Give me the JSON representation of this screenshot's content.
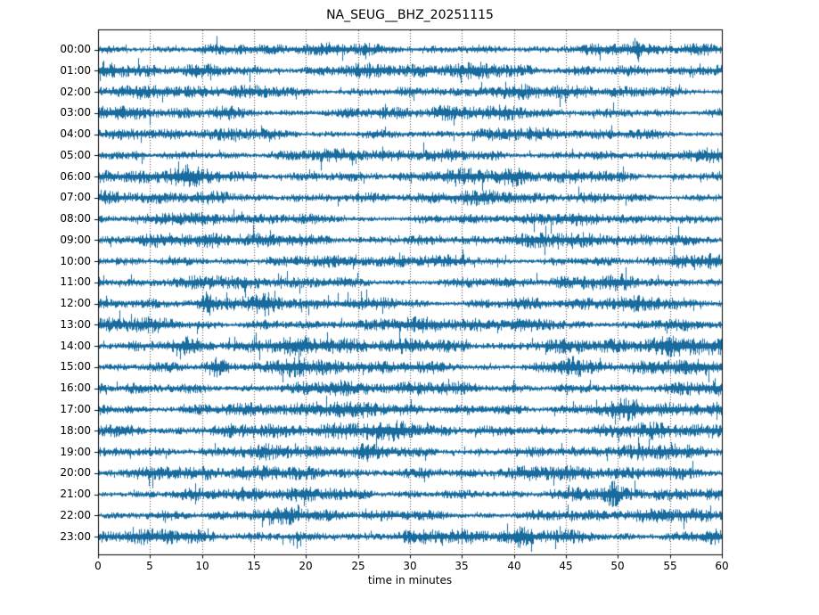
{
  "colors": {
    "background": "#ffffff",
    "trace": "#176b9e",
    "grid": "#4c4c4c",
    "axis": "#000000",
    "text": "#000000"
  },
  "chart_data": {
    "type": "line",
    "subtype": "seismic-dayplot",
    "title": "NA_SEUG__BHZ_20251115",
    "xlabel": "time in minutes",
    "x_range": [
      0,
      60
    ],
    "x_ticks": [
      0,
      5,
      10,
      15,
      20,
      25,
      30,
      35,
      40,
      45,
      50,
      55,
      60
    ],
    "grid": {
      "visible": true,
      "style": "dotted",
      "positions_minutes": [
        5,
        10,
        15,
        20,
        25,
        30,
        35,
        40,
        45,
        50,
        55
      ]
    },
    "legend": "none",
    "noise_seed": 20251115,
    "rows": [
      {
        "hour": "00:00",
        "amp": 0.95,
        "events": [
          {
            "m": 51.8,
            "b": 0.9,
            "w": 0.3
          }
        ]
      },
      {
        "hour": "01:00",
        "amp": 1.15,
        "events": [
          {
            "m": 9,
            "b": 0.5,
            "w": 1.2
          },
          {
            "m": 45,
            "b": 0.35,
            "w": 0.8
          }
        ]
      },
      {
        "hour": "02:00",
        "amp": 1.0,
        "events": [
          {
            "m": 47,
            "b": 0.3,
            "w": 1.0
          }
        ]
      },
      {
        "hour": "03:00",
        "amp": 1.0,
        "events": [
          {
            "m": 12,
            "b": 0.5,
            "w": 0.8
          },
          {
            "m": 33,
            "b": 0.3,
            "w": 0.7
          }
        ]
      },
      {
        "hour": "04:00",
        "amp": 0.9,
        "events": [
          {
            "m": 26,
            "b": 0.3,
            "w": 0.8
          }
        ]
      },
      {
        "hour": "05:00",
        "amp": 0.95,
        "events": [
          {
            "m": 4,
            "b": 0.8,
            "w": 0.5
          },
          {
            "m": 38,
            "b": 0.3,
            "w": 0.8
          }
        ]
      },
      {
        "hour": "06:00",
        "amp": 1.1,
        "events": [
          {
            "m": 8,
            "b": 0.5,
            "w": 1.0
          },
          {
            "m": 40,
            "b": 0.4,
            "w": 0.9
          }
        ]
      },
      {
        "hour": "07:00",
        "amp": 1.0,
        "events": [
          {
            "m": 19,
            "b": 0.9,
            "w": 0.6
          }
        ]
      },
      {
        "hour": "08:00",
        "amp": 0.9,
        "events": [
          {
            "m": 54,
            "b": 0.5,
            "w": 0.5
          }
        ]
      },
      {
        "hour": "09:00",
        "amp": 1.05,
        "events": [
          {
            "m": 11,
            "b": 0.4,
            "w": 0.5
          }
        ]
      },
      {
        "hour": "10:00",
        "amp": 0.95,
        "events": [
          {
            "m": 16.5,
            "b": 0.5,
            "w": 0.6
          },
          {
            "m": 56,
            "b": 0.5,
            "w": 0.5
          }
        ]
      },
      {
        "hour": "11:00",
        "amp": 0.95,
        "events": [
          {
            "m": 17.5,
            "b": 0.4,
            "w": 0.6
          },
          {
            "m": 50,
            "b": 0.3,
            "w": 0.8
          }
        ]
      },
      {
        "hour": "12:00",
        "amp": 1.05,
        "events": [
          {
            "m": 10.5,
            "b": 1.1,
            "w": 0.35
          },
          {
            "m": 16,
            "b": 0.5,
            "w": 0.6
          },
          {
            "m": 28,
            "b": 0.4,
            "w": 0.8
          }
        ]
      },
      {
        "hour": "13:00",
        "amp": 1.1,
        "events": [
          {
            "m": 23,
            "b": 0.4,
            "w": 0.9
          },
          {
            "m": 55,
            "b": 0.35,
            "w": 0.8
          }
        ]
      },
      {
        "hour": "14:00",
        "amp": 1.3,
        "events": [
          {
            "m": 9,
            "b": 0.5,
            "w": 1.5
          }
        ]
      },
      {
        "hour": "15:00",
        "amp": 1.1,
        "events": [
          {
            "m": 11.3,
            "b": 1.4,
            "w": 0.7
          },
          {
            "m": 45.5,
            "b": 1.2,
            "w": 0.9
          },
          {
            "m": 19,
            "b": 0.4,
            "w": 0.8
          }
        ]
      },
      {
        "hour": "16:00",
        "amp": 1.05,
        "events": [
          {
            "m": 3,
            "b": 0.5,
            "w": 0.6
          },
          {
            "m": 23,
            "b": 0.45,
            "w": 0.7
          },
          {
            "m": 40,
            "b": 0.4,
            "w": 0.7
          }
        ]
      },
      {
        "hour": "17:00",
        "amp": 1.15,
        "events": [
          {
            "m": 51,
            "b": 0.5,
            "w": 1.0
          }
        ]
      },
      {
        "hour": "18:00",
        "amp": 1.2,
        "events": [
          {
            "m": 10,
            "b": 0.4,
            "w": 1.2
          },
          {
            "m": 30,
            "b": 0.4,
            "w": 2.0
          }
        ]
      },
      {
        "hour": "19:00",
        "amp": 1.05,
        "events": [
          {
            "m": 26,
            "b": 0.4,
            "w": 0.8
          },
          {
            "m": 55,
            "b": 0.35,
            "w": 0.6
          }
        ]
      },
      {
        "hour": "20:00",
        "amp": 1.1,
        "events": [
          {
            "m": 23.5,
            "b": 0.7,
            "w": 0.7
          }
        ]
      },
      {
        "hour": "21:00",
        "amp": 1.0,
        "events": [
          {
            "m": 49.5,
            "b": 0.9,
            "w": 0.4
          },
          {
            "m": 15,
            "b": 0.35,
            "w": 0.8
          }
        ]
      },
      {
        "hour": "22:00",
        "amp": 1.0,
        "events": [
          {
            "m": 18,
            "b": 0.4,
            "w": 0.7
          },
          {
            "m": 35,
            "b": 0.3,
            "w": 0.8
          }
        ]
      },
      {
        "hour": "23:00",
        "amp": 1.1,
        "events": [
          {
            "m": 40.5,
            "b": 0.6,
            "w": 0.7
          },
          {
            "m": 59,
            "b": 1.2,
            "w": 0.6
          }
        ]
      }
    ]
  }
}
